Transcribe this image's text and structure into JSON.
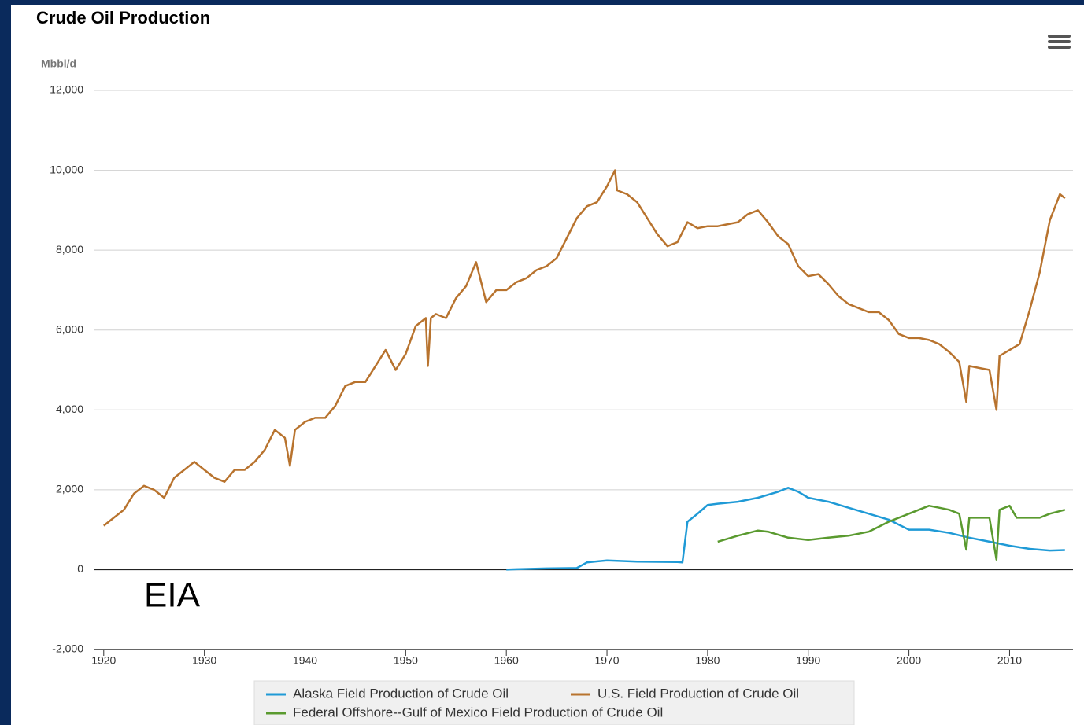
{
  "chart_data": {
    "type": "line",
    "title": "Crude Oil Production",
    "y_label": "Mbbl/d",
    "annotation": "EIA",
    "xlim": [
      1919,
      2016.3
    ],
    "xticks": [
      1920,
      1930,
      1940,
      1950,
      1960,
      1970,
      1980,
      1990,
      2000,
      2010
    ],
    "ylim": [
      -2000,
      12000
    ],
    "yticks": [
      {
        "value": -2000,
        "label": "-2,000"
      },
      0,
      {
        "value": 2000,
        "label": "2,000"
      },
      {
        "value": 4000,
        "label": "4,000"
      },
      {
        "value": 6000,
        "label": "6,000"
      },
      {
        "value": 8000,
        "label": "8,000"
      },
      {
        "value": 10000,
        "label": "10,000"
      },
      {
        "value": 12000,
        "label": "12,000"
      }
    ],
    "grid": true,
    "series": [
      {
        "name": "Alaska Field Production of Crude Oil",
        "color": "#1f9ad6",
        "x": [
          1960,
          1961,
          1964,
          1967,
          1968,
          1970,
          1973,
          1977,
          1977.5,
          1978,
          1979,
          1980,
          1981,
          1983,
          1985,
          1987,
          1988,
          1989,
          1990,
          1992,
          1994,
          1996,
          1998,
          2000,
          2002,
          2004,
          2006,
          2008,
          2010,
          2012,
          2014,
          2015.5
        ],
        "values": [
          0,
          10,
          30,
          40,
          180,
          230,
          200,
          190,
          180,
          1200,
          1400,
          1620,
          1650,
          1700,
          1800,
          1950,
          2050,
          1950,
          1800,
          1700,
          1550,
          1400,
          1250,
          1000,
          1000,
          920,
          800,
          700,
          600,
          520,
          480,
          490
        ]
      },
      {
        "name": "U.S. Field Production of Crude Oil",
        "color": "#b8732e",
        "x": [
          1920,
          1921,
          1922,
          1923,
          1924,
          1925,
          1926,
          1927,
          1928,
          1929,
          1930,
          1931,
          1932,
          1933,
          1934,
          1935,
          1936,
          1937,
          1938,
          1938.5,
          1939,
          1940,
          1941,
          1942,
          1943,
          1944,
          1945,
          1946,
          1947,
          1948,
          1949,
          1950,
          1951,
          1952,
          1952.2,
          1952.5,
          1953,
          1954,
          1955,
          1956,
          1957,
          1958,
          1959,
          1960,
          1961,
          1962,
          1963,
          1964,
          1965,
          1966,
          1967,
          1968,
          1969,
          1970,
          1970.8,
          1971,
          1972,
          1973,
          1974,
          1975,
          1976,
          1977,
          1978,
          1979,
          1980,
          1981,
          1982,
          1983,
          1984,
          1985,
          1986,
          1987,
          1988,
          1989,
          1990,
          1991,
          1992,
          1993,
          1994,
          1995,
          1996,
          1997,
          1998,
          1999,
          2000,
          2001,
          2002,
          2003,
          2004,
          2005,
          2005.7,
          2006,
          2007,
          2008,
          2008.7,
          2009,
          2010,
          2011,
          2012,
          2013,
          2014,
          2015,
          2015.5
        ],
        "values": [
          1100,
          1300,
          1500,
          1900,
          2100,
          2000,
          1800,
          2300,
          2500,
          2700,
          2500,
          2300,
          2200,
          2500,
          2500,
          2700,
          3000,
          3500,
          3300,
          2600,
          3500,
          3700,
          3800,
          3800,
          4100,
          4600,
          4700,
          4700,
          5100,
          5500,
          5000,
          5400,
          6100,
          6300,
          5100,
          6300,
          6400,
          6300,
          6800,
          7100,
          7700,
          6700,
          7000,
          7000,
          7200,
          7300,
          7500,
          7600,
          7800,
          8300,
          8800,
          9100,
          9200,
          9600,
          10000,
          9500,
          9400,
          9200,
          8800,
          8400,
          8100,
          8200,
          8700,
          8550,
          8600,
          8600,
          8650,
          8700,
          8900,
          9000,
          8700,
          8350,
          8150,
          7600,
          7350,
          7400,
          7150,
          6850,
          6650,
          6550,
          6450,
          6450,
          6250,
          5900,
          5800,
          5800,
          5750,
          5650,
          5450,
          5200,
          4200,
          5100,
          5050,
          5000,
          4000,
          5350,
          5500,
          5650,
          6500,
          7450,
          8750,
          9400,
          9300
        ]
      },
      {
        "name": "Federal Offshore--Gulf of Mexico Field Production of Crude Oil",
        "color": "#5a9a2f",
        "x": [
          1981,
          1983,
          1985,
          1986,
          1988,
          1990,
          1992,
          1994,
          1996,
          1998,
          2000,
          2002,
          2003,
          2004,
          2005,
          2005.7,
          2006,
          2008,
          2008.7,
          2009,
          2010,
          2010.7,
          2011,
          2012,
          2013,
          2014,
          2015.5
        ],
        "values": [
          700,
          850,
          980,
          950,
          800,
          740,
          800,
          850,
          950,
          1200,
          1400,
          1600,
          1550,
          1500,
          1400,
          500,
          1300,
          1300,
          250,
          1500,
          1600,
          1300,
          1300,
          1300,
          1300,
          1400,
          1500
        ]
      }
    ]
  }
}
